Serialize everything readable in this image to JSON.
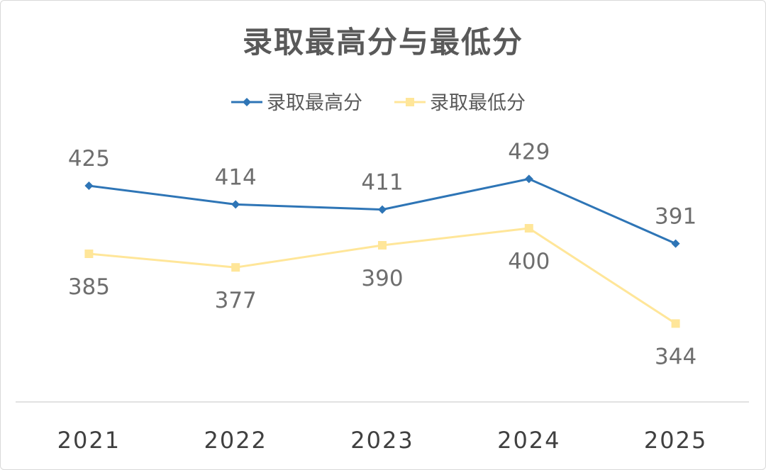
{
  "chart_data": {
    "type": "line",
    "title": "录取最高分与最低分",
    "categories": [
      "2021",
      "2022",
      "2023",
      "2024",
      "2025"
    ],
    "series": [
      {
        "name": "录取最高分",
        "values": [
          425,
          414,
          411,
          429,
          391
        ],
        "color": "#2e75b6",
        "marker": "diamond",
        "label_position": "above"
      },
      {
        "name": "录取最低分",
        "values": [
          385,
          377,
          390,
          400,
          344
        ],
        "color": "#ffe699",
        "marker": "square",
        "label_position": "below"
      }
    ],
    "xlabel": "",
    "ylabel": "",
    "ylim": [
      290,
      480
    ],
    "grid": false,
    "legend": "top-center"
  }
}
